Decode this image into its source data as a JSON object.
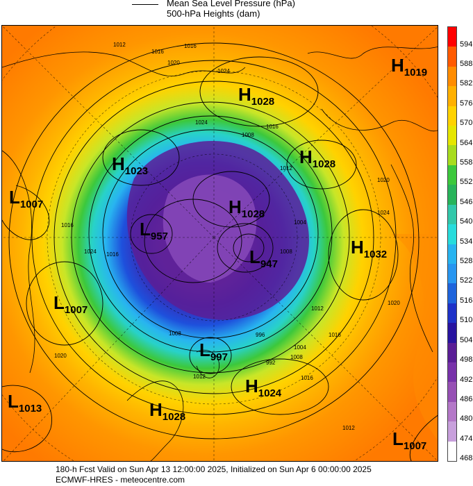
{
  "legend": {
    "line1": "Mean Sea Level Pressure (hPa)",
    "line2": "500-hPa Heights (dam)"
  },
  "colorbar": {
    "labels": [
      "594",
      "588",
      "582",
      "576",
      "570",
      "564",
      "558",
      "552",
      "546",
      "540",
      "534",
      "528",
      "522",
      "516",
      "510",
      "504",
      "498",
      "492",
      "486",
      "480",
      "474",
      "468"
    ],
    "colors": [
      "#ff0000",
      "#ff5a00",
      "#ff8c00",
      "#ffb000",
      "#ffd200",
      "#e6e600",
      "#a8dc1e",
      "#3cc83c",
      "#28b45a",
      "#32c8aa",
      "#28dcdc",
      "#28b4f0",
      "#2896f0",
      "#1e64dc",
      "#1e32c8",
      "#2814a0",
      "#5a1e96",
      "#7832aa",
      "#9650b4",
      "#b478c8",
      "#c8a0dc",
      "#ffffff"
    ]
  },
  "map": {
    "pressure_systems": [
      {
        "letter": "H",
        "value": "1019"
      },
      {
        "letter": "H",
        "value": "1028"
      },
      {
        "letter": "H",
        "value": "1023"
      },
      {
        "letter": "H",
        "value": "1028"
      },
      {
        "letter": "L",
        "value": "1007"
      },
      {
        "letter": "L",
        "value": "957"
      },
      {
        "letter": "H",
        "value": "1028"
      },
      {
        "letter": "L",
        "value": "947"
      },
      {
        "letter": "H",
        "value": "1032"
      },
      {
        "letter": "L",
        "value": "1007"
      },
      {
        "letter": "L",
        "value": "997"
      },
      {
        "letter": "H",
        "value": "1024"
      },
      {
        "letter": "L",
        "value": "1013"
      },
      {
        "letter": "H",
        "value": "1028"
      },
      {
        "letter": "L",
        "value": "1007"
      }
    ],
    "isobar_labels": [
      "1012",
      "1016",
      "1016",
      "1020",
      "1024",
      "1024",
      "1016",
      "1008",
      "1012",
      "1020",
      "1024",
      "1016",
      "1024",
      "1016",
      "1004",
      "1008",
      "1012",
      "996",
      "992",
      "1008",
      "1004",
      "1008",
      "1016",
      "1020",
      "1012",
      "1016",
      "1020",
      "1012"
    ]
  },
  "footer": {
    "line1": "180-h Fcst Valid on Sun Apr 13 12:00:00 2025, Initialized on Sun Apr  6 00:00:00 2025",
    "line2": "ECMWF-HRES - meteocentre.com"
  }
}
